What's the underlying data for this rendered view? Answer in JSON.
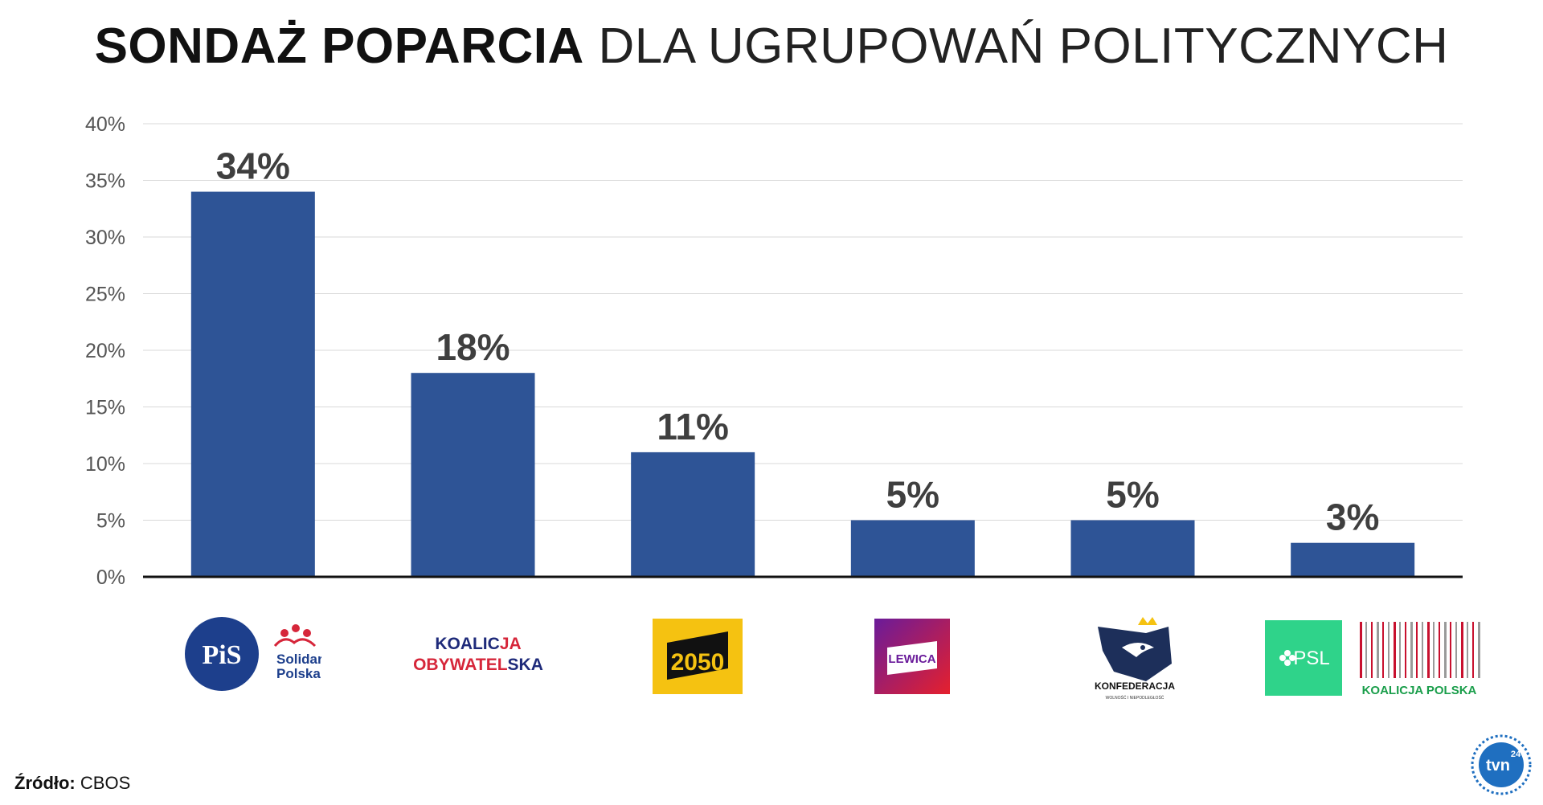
{
  "title": {
    "bold": "SONDAŻ POPARCIA",
    "light": "DLA UGRUPOWAŃ POLITYCZNYCH"
  },
  "chart_data": {
    "type": "bar",
    "categories": [
      "PiS Solidarna Polska",
      "Koalicja Obywatelska",
      "2050",
      "Lewica",
      "Konfederacja",
      "PSL Koalicja Polska"
    ],
    "values": [
      34,
      18,
      11,
      5,
      5,
      3
    ],
    "data_labels": [
      "34%",
      "18%",
      "11%",
      "5%",
      "5%",
      "3%"
    ],
    "ylim": [
      0,
      40
    ],
    "yticks": [
      0,
      5,
      10,
      15,
      20,
      25,
      30,
      35,
      40
    ],
    "ytick_labels": [
      "0%",
      "5%",
      "10%",
      "15%",
      "20%",
      "25%",
      "30%",
      "35%",
      "40%"
    ],
    "grid": true,
    "bar_color": "#2e5496",
    "xlabel": "",
    "ylabel": ""
  },
  "logos": {
    "pis": {
      "mark": "PiS",
      "line1": "Solidarna",
      "line2": "Polska"
    },
    "ko": {
      "line1a": "KOALIC",
      "line1b": "JA",
      "line2a": "OBYWATEL",
      "line2b": "SKA"
    },
    "p2050": {
      "text": "2050"
    },
    "lewica": {
      "text": "LEWICA"
    },
    "konf": {
      "text": "KONFEDERACJA",
      "sub": "WOLNOŚĆ I NIEPODLEGŁOŚĆ"
    },
    "psl": {
      "text": "PSL",
      "koalicja": "KOALICJA POLSKA"
    }
  },
  "source": {
    "label": "Źródło:",
    "value": "CBOS"
  },
  "brand": {
    "text": "tvn",
    "num": "24"
  },
  "colors": {
    "bar": "#2e5496",
    "grid": "#d9d9d9",
    "axis": "#111111",
    "label": "#3f3f3f",
    "pis_blue": "#1d3f8c",
    "ko_blue": "#1e2a7a",
    "ko_red": "#d6263a",
    "yellow_2050": "#f5c211",
    "psl_green": "#2fd38a"
  }
}
